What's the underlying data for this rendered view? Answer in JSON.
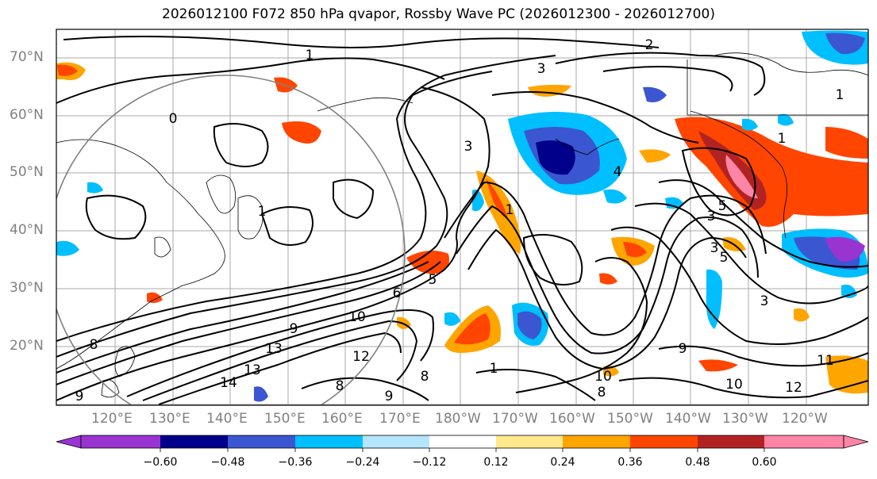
{
  "title": "2026012100 F072 850 hPa qvapor, Rossby Wave PC (2026012300 - 2026012700)",
  "map": {
    "latitude_labels": [
      "70°N",
      "60°N",
      "50°N",
      "40°N",
      "30°N",
      "20°N"
    ],
    "longitude_labels": [
      "120°E",
      "130°E",
      "140°E",
      "150°E",
      "160°E",
      "170°E",
      "180°W",
      "170°W",
      "160°W",
      "150°W",
      "140°W",
      "130°W",
      "120°W"
    ],
    "contour_labels": [
      "0",
      "1",
      "1",
      "1",
      "2",
      "3",
      "3",
      "3",
      "3",
      "3",
      "4",
      "5",
      "5",
      "5",
      "6",
      "8",
      "8",
      "8",
      "8",
      "9",
      "9",
      "9",
      "9",
      "10",
      "10",
      "10",
      "11",
      "12",
      "12",
      "13",
      "13",
      "14",
      "1",
      "1",
      "1"
    ]
  },
  "colorbar": {
    "ticks": [
      "−0.60",
      "−0.48",
      "−0.36",
      "−0.24",
      "−0.12",
      "0.12",
      "0.24",
      "0.36",
      "0.48",
      "0.60"
    ],
    "colors": [
      "#9a34d1",
      "#00008b",
      "#3b56d1",
      "#00bfff",
      "#b3e5fc",
      "#ffffff",
      "#ffe98a",
      "#ffa500",
      "#ff4500",
      "#b22222",
      "#ff85a6"
    ]
  }
}
